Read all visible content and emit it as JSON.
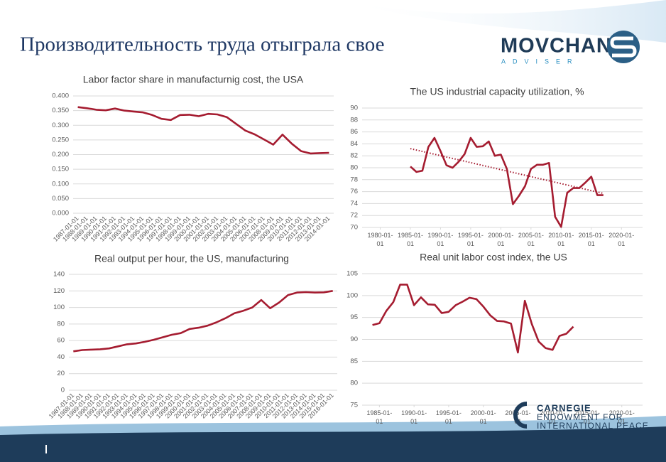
{
  "header": {
    "title": "Производительность труда отыграла свое"
  },
  "logo_top": {
    "name": "MOVCHAN",
    "sub": "ADVISER"
  },
  "logo_bottom": {
    "line1": "CARNEGIE",
    "line2": "ENDOWMENT FOR",
    "line3": "INTERNATIONAL PEACE"
  },
  "chart_data": [
    {
      "type": "line",
      "title": "Labor factor share in manufacturnig cost, the USA",
      "categories": [
        "1987-01-01",
        "1988-01-01",
        "1989-01-01",
        "1990-01-01",
        "1991-01-01",
        "1992-01-01",
        "1993-01-01",
        "1994-01-01",
        "1995-01-01",
        "1996-01-01",
        "1997-01-01",
        "1998-01-01",
        "1999-01-01",
        "2000-01-01",
        "2001-01-01",
        "2002-01-01",
        "2003-01-01",
        "2004-01-01",
        "2005-01-01",
        "2006-01-01",
        "2007-01-01",
        "2008-01-01",
        "2009-01-01",
        "2010-01-01",
        "2011-01-01",
        "2012-01-01",
        "2013-01-01",
        "2014-01-01"
      ],
      "series": [
        {
          "color": "#a51c30",
          "values": [
            0.362,
            0.358,
            0.353,
            0.351,
            0.357,
            0.35,
            0.347,
            0.344,
            0.335,
            0.322,
            0.318,
            0.335,
            0.336,
            0.331,
            0.339,
            0.337,
            0.328,
            0.305,
            0.282,
            0.269,
            0.252,
            0.234,
            0.268,
            0.237,
            0.212,
            0.204,
            0.205,
            0.206
          ]
        }
      ],
      "ylim": [
        0,
        0.4
      ],
      "yticks": [
        {
          "value": 0,
          "label": "0.000"
        },
        {
          "value": 0.05,
          "label": "0.050"
        },
        {
          "value": 0.1,
          "label": "0.100"
        },
        {
          "value": 0.15,
          "label": "0.150"
        },
        {
          "value": 0.2,
          "label": "0.200"
        },
        {
          "value": 0.25,
          "label": "0.250"
        },
        {
          "value": 0.3,
          "label": "0.300"
        },
        {
          "value": 0.35,
          "label": "0.350"
        },
        {
          "value": 0.4,
          "label": "0.400"
        }
      ],
      "grid": true
    },
    {
      "type": "line",
      "title": "The US industrial capacity utilization, %",
      "x": [
        1985,
        1986,
        1987,
        1988,
        1989,
        1990,
        1991,
        1992,
        1993,
        1994,
        1995,
        1996,
        1997,
        1998,
        1999,
        2000,
        2001,
        2002,
        2003,
        2004,
        2005,
        2006,
        2007,
        2008,
        2009,
        2010,
        2011,
        2012,
        2013,
        2014,
        2015,
        2016,
        2017
      ],
      "series": [
        {
          "color": "#a51c30",
          "values": [
            80.2,
            79.3,
            79.5,
            83.5,
            85.0,
            82.8,
            80.4,
            80.0,
            81.0,
            82.3,
            85.0,
            83.5,
            83.6,
            84.4,
            82.0,
            82.2,
            79.8,
            73.9,
            75.3,
            76.9,
            79.8,
            80.5,
            80.5,
            80.8,
            71.8,
            70.1,
            75.8,
            76.6,
            76.6,
            77.5,
            78.5,
            75.4,
            75.4
          ]
        }
      ],
      "trendline": {
        "color": "#a51c30",
        "x": [
          1985,
          2017
        ],
        "values": [
          83.2,
          75.7
        ]
      },
      "xlim": [
        1977,
        2023.5
      ],
      "xticks": [
        {
          "value": 1980,
          "label": "1980-01-01"
        },
        {
          "value": 1985,
          "label": "1985-01-01"
        },
        {
          "value": 1990,
          "label": "1990-01-01"
        },
        {
          "value": 1995,
          "label": "1995-01-01"
        },
        {
          "value": 2000,
          "label": "2000-01-01"
        },
        {
          "value": 2005,
          "label": "2005-01-01"
        },
        {
          "value": 2010,
          "label": "2010-01-01"
        },
        {
          "value": 2015,
          "label": "2015-01-01"
        },
        {
          "value": 2020,
          "label": "2020-01-01"
        }
      ],
      "ylim": [
        70,
        90
      ],
      "yticks": [
        70,
        72,
        74,
        76,
        78,
        80,
        82,
        84,
        86,
        88,
        90
      ],
      "grid": true
    },
    {
      "type": "line",
      "title": "Real output per hour, the US, manufacturing",
      "categories": [
        "1987-01-01",
        "1988-01-01",
        "1989-01-01",
        "1990-01-01",
        "1991-01-01",
        "1992-01-01",
        "1993-01-01",
        "1994-01-01",
        "1995-01-01",
        "1996-01-01",
        "1997-01-01",
        "1998-01-01",
        "1999-01-01",
        "2000-01-01",
        "2001-01-01",
        "2002-01-01",
        "2003-01-01",
        "2004-01-01",
        "2005-01-01",
        "2006-01-01",
        "2007-01-01",
        "2008-01-01",
        "2009-01-01",
        "2010-01-01",
        "2011-01-01",
        "2012-01-01",
        "2013-01-01",
        "2014-01-01",
        "2015-01-01",
        "2016-01-01"
      ],
      "series": [
        {
          "color": "#a51c30",
          "values": [
            47,
            48.5,
            49,
            49.5,
            50.5,
            53,
            55.5,
            56.5,
            58.5,
            61,
            64,
            67,
            69,
            74,
            75.5,
            78,
            82,
            87,
            93,
            96,
            100,
            109,
            99,
            106,
            115,
            118,
            118.5,
            118,
            118.3,
            120
          ]
        }
      ],
      "ylim": [
        0,
        140
      ],
      "yticks": [
        0,
        20,
        40,
        60,
        80,
        100,
        120,
        140
      ],
      "grid": true
    },
    {
      "type": "line",
      "title": "Real unit labor cost index, the US",
      "x": [
        1984,
        1985,
        1986,
        1987,
        1988,
        1989,
        1990,
        1991,
        1992,
        1993,
        1994,
        1995,
        1996,
        1997,
        1998,
        1999,
        2000,
        2001,
        2002,
        2003,
        2004,
        2005,
        2006,
        2007,
        2008,
        2009,
        2010,
        2011,
        2012,
        2013
      ],
      "series": [
        {
          "color": "#a51c30",
          "values": [
            93.3,
            93.7,
            96.5,
            98.5,
            102.5,
            102.5,
            97.8,
            99.6,
            98.0,
            97.9,
            96.0,
            96.3,
            97.8,
            98.6,
            99.5,
            99.2,
            97.5,
            95.5,
            94.2,
            94.1,
            93.6,
            87.0,
            98.8,
            93.5,
            89.5,
            88.0,
            87.6,
            90.8,
            91.3,
            92.9
          ]
        }
      ],
      "xlim": [
        1982.5,
        2023
      ],
      "xticks": [
        {
          "value": 1985,
          "label": "1985-01-01"
        },
        {
          "value": 1990,
          "label": "1990-01-01"
        },
        {
          "value": 1995,
          "label": "1995-01-01"
        },
        {
          "value": 2000,
          "label": "2000-01-01"
        },
        {
          "value": 2005,
          "label": "2005-01-01"
        },
        {
          "value": 2010,
          "label": "2010-01-01"
        },
        {
          "value": 2015,
          "label": "2015-01-01"
        },
        {
          "value": 2020,
          "label": "2020-01-01"
        }
      ],
      "ylim": [
        75,
        105
      ],
      "yticks": [
        75,
        80,
        85,
        90,
        95,
        100,
        105
      ],
      "grid": true
    }
  ]
}
